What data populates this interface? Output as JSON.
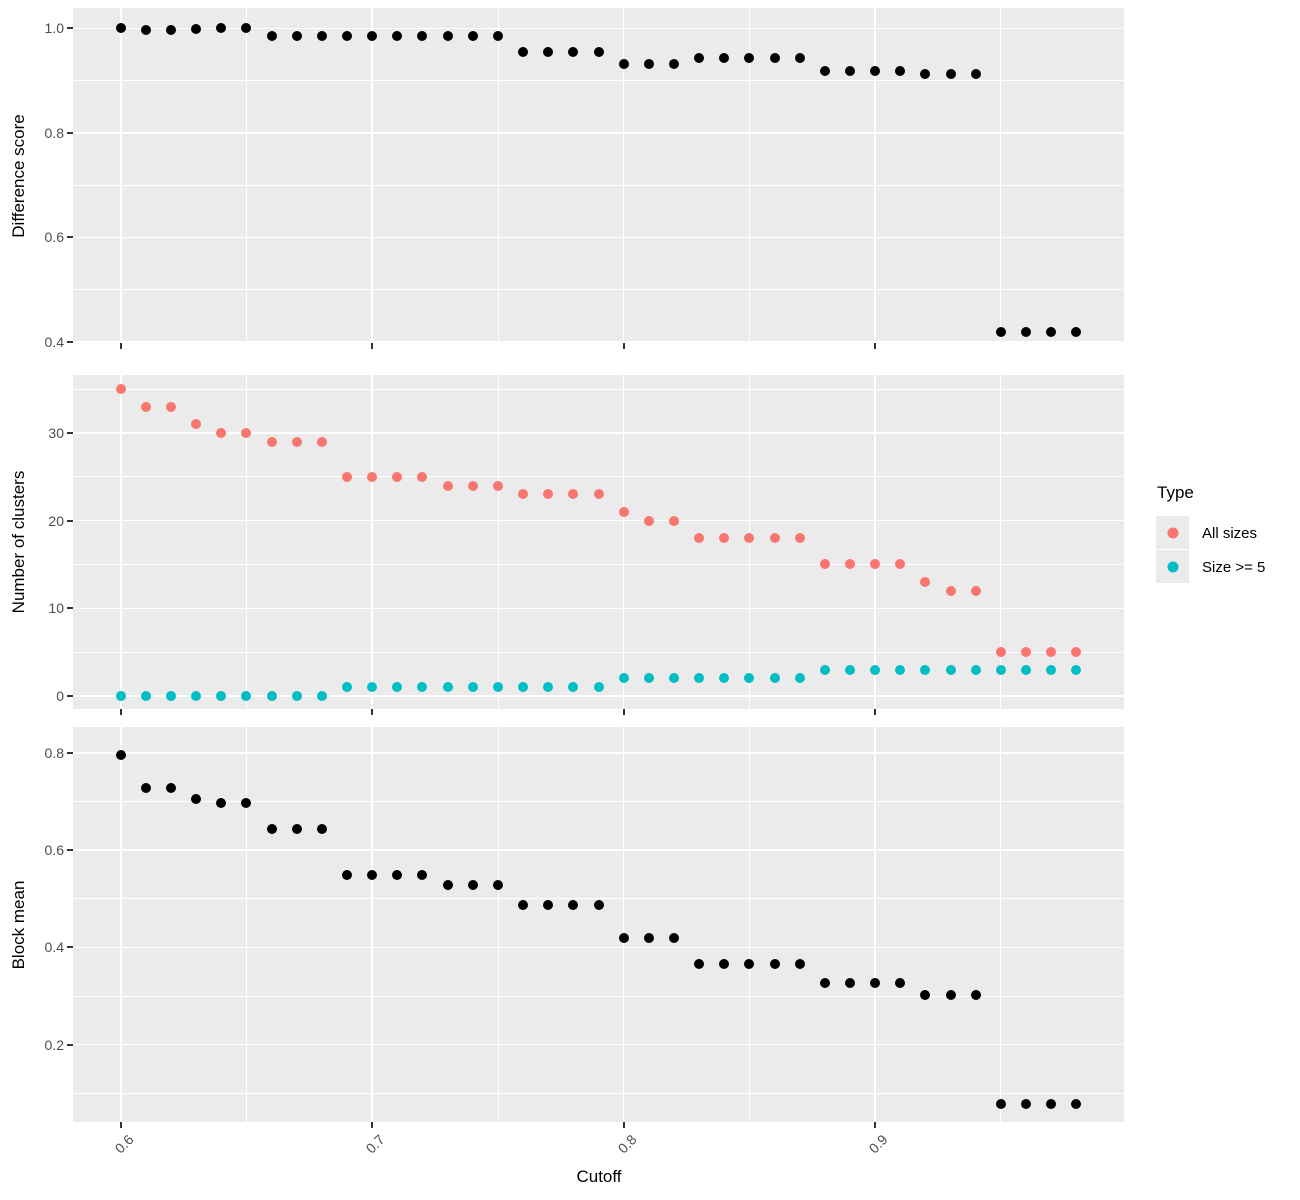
{
  "chart_data": {
    "type": "scatter",
    "x": {
      "label": "Cutoff",
      "values": [
        0.6,
        0.61,
        0.62,
        0.63,
        0.64,
        0.65,
        0.66,
        0.67,
        0.68,
        0.69,
        0.7,
        0.71,
        0.72,
        0.73,
        0.74,
        0.75,
        0.76,
        0.77,
        0.78,
        0.79,
        0.8,
        0.81,
        0.82,
        0.83,
        0.84,
        0.85,
        0.86,
        0.87,
        0.88,
        0.89,
        0.9,
        0.91,
        0.92,
        0.93,
        0.94,
        0.95,
        0.96,
        0.97,
        0.98
      ],
      "major_ticks": [
        0.6,
        0.7,
        0.8,
        0.9
      ],
      "tick_labels": [
        "0.6",
        "0.7",
        "0.8",
        "0.9"
      ],
      "minor_ticks": [
        0.65,
        0.75,
        0.85,
        0.95
      ],
      "range": [
        0.581,
        0.999
      ]
    },
    "panels": [
      {
        "ylabel": "Difference score",
        "major_ticks": [
          1.0,
          0.8,
          0.6,
          0.4
        ],
        "tick_labels": [
          "1.0",
          "0.8",
          "0.6",
          "0.4"
        ],
        "minor_ticks": [
          0.9,
          0.7,
          0.5
        ],
        "range": [
          0.398,
          1.039
        ],
        "series": [
          {
            "name": "Difference score",
            "color": "#000000",
            "values": [
              1.0,
              0.996,
              0.996,
              0.999,
              1.0,
              1.0,
              0.985,
              0.985,
              0.985,
              0.985,
              0.985,
              0.985,
              0.985,
              0.985,
              0.985,
              0.985,
              0.954,
              0.954,
              0.954,
              0.954,
              0.931,
              0.931,
              0.931,
              0.944,
              0.944,
              0.944,
              0.944,
              0.944,
              0.918,
              0.918,
              0.918,
              0.918,
              0.913,
              0.913,
              0.913,
              0.419,
              0.419,
              0.419,
              0.419
            ]
          }
        ]
      },
      {
        "ylabel": "Number of clusters",
        "major_ticks": [
          30,
          20,
          10,
          0
        ],
        "tick_labels": [
          "30",
          "20",
          "10",
          "0"
        ],
        "minor_ticks": [
          35,
          25,
          15,
          5
        ],
        "range": [
          -1.48,
          36.6
        ],
        "series": [
          {
            "name": "All sizes",
            "color": "#F8766D",
            "values": [
              35,
              33,
              33,
              31,
              30,
              30,
              29,
              29,
              29,
              25,
              25,
              25,
              25,
              24,
              24,
              24,
              23,
              23,
              23,
              23,
              21,
              20,
              20,
              18,
              18,
              18,
              18,
              18,
              15,
              15,
              15,
              15,
              13,
              12,
              12,
              5,
              5,
              5,
              5
            ]
          },
          {
            "name": "Size >= 5",
            "color": "#00BFC4",
            "values": [
              0,
              0,
              0,
              0,
              0,
              0,
              0,
              0,
              0,
              1,
              1,
              1,
              1,
              1,
              1,
              1,
              1,
              1,
              1,
              1,
              2,
              2,
              2,
              2,
              2,
              2,
              2,
              2,
              3,
              3,
              3,
              3,
              3,
              3,
              3,
              3,
              3,
              3,
              3
            ]
          }
        ]
      },
      {
        "ylabel": "Block mean",
        "major_ticks": [
          0.8,
          0.6,
          0.4,
          0.2
        ],
        "tick_labels": [
          "0.8",
          "0.6",
          "0.4",
          "0.2"
        ],
        "minor_ticks": [
          0.7,
          0.5,
          0.3,
          0.1
        ],
        "range": [
          0.041,
          0.853
        ],
        "series": [
          {
            "name": "Block mean",
            "color": "#000000",
            "values": [
              0.795,
              0.727,
              0.727,
              0.705,
              0.696,
              0.696,
              0.643,
              0.643,
              0.643,
              0.549,
              0.549,
              0.549,
              0.549,
              0.528,
              0.528,
              0.528,
              0.488,
              0.488,
              0.488,
              0.488,
              0.419,
              0.419,
              0.419,
              0.366,
              0.366,
              0.366,
              0.366,
              0.366,
              0.327,
              0.327,
              0.327,
              0.327,
              0.303,
              0.303,
              0.303,
              0.078,
              0.078,
              0.078,
              0.078
            ]
          }
        ]
      }
    ],
    "legend": {
      "title": "Type",
      "position": "right",
      "items": [
        {
          "label": "All sizes",
          "color": "#F8766D"
        },
        {
          "label": "Size >= 5",
          "color": "#00BFC4"
        }
      ]
    },
    "colors": {
      "panel_bg": "#EBEBEB",
      "grid": "#FFFFFF",
      "tick_text": "#4D4D4D",
      "axis_title": "#000000",
      "tick_mark": "#333333"
    }
  }
}
